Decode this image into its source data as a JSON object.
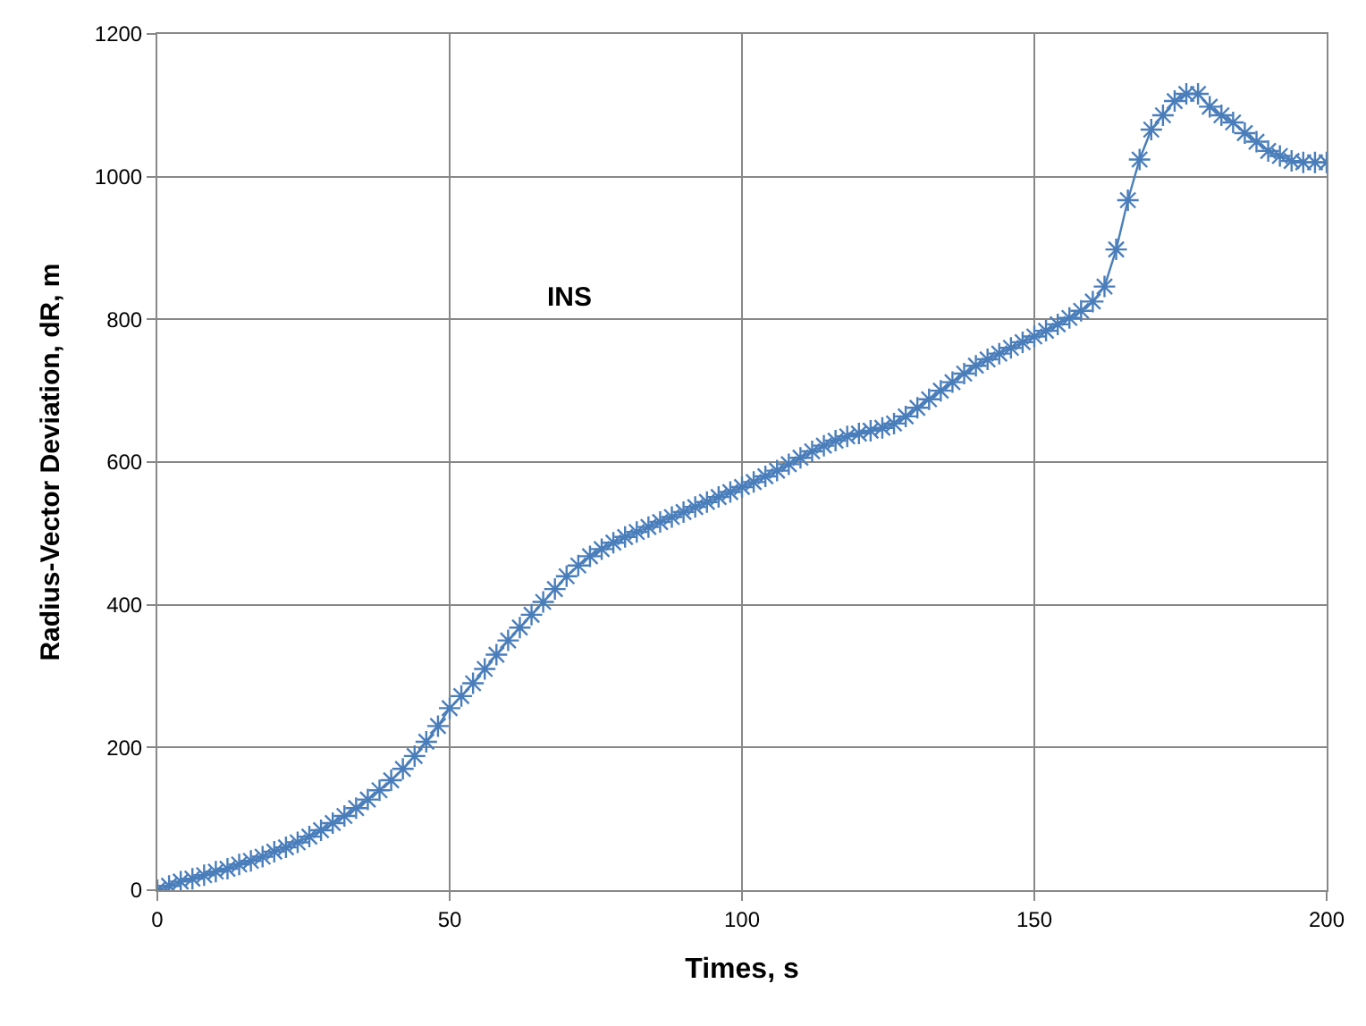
{
  "chart_data": {
    "type": "line",
    "xlabel": "Times, s",
    "ylabel": "Radius-Vector Deviation, dR, m",
    "annotations": [
      "INS"
    ],
    "x": [
      0,
      2,
      4,
      6,
      8,
      10,
      12,
      14,
      16,
      18,
      20,
      22,
      24,
      26,
      28,
      30,
      32,
      34,
      36,
      38,
      40,
      42,
      44,
      46,
      48,
      50,
      52,
      54,
      56,
      58,
      60,
      62,
      64,
      66,
      68,
      70,
      72,
      74,
      76,
      78,
      80,
      82,
      84,
      86,
      88,
      90,
      92,
      94,
      96,
      98,
      100,
      102,
      104,
      106,
      108,
      110,
      112,
      114,
      116,
      118,
      120,
      122,
      124,
      126,
      128,
      130,
      132,
      134,
      136,
      138,
      140,
      142,
      144,
      146,
      148,
      150,
      152,
      154,
      156,
      158,
      160,
      162,
      164,
      166,
      168,
      170,
      172,
      174,
      176,
      178,
      180,
      182,
      184,
      186,
      188,
      190,
      192,
      194,
      196,
      198,
      200
    ],
    "series": [
      {
        "color": "#4a7ebb",
        "values": [
          0,
          6,
          12,
          16,
          21,
          26,
          30,
          36,
          41,
          47,
          54,
          60,
          67,
          75,
          84,
          94,
          104,
          115,
          127,
          140,
          154,
          170,
          188,
          208,
          230,
          255,
          272,
          290,
          310,
          330,
          350,
          368,
          386,
          404,
          422,
          440,
          455,
          468,
          478,
          487,
          495,
          502,
          509,
          516,
          523,
          530,
          537,
          544,
          551,
          558,
          565,
          572,
          580,
          588,
          597,
          606,
          615,
          623,
          630,
          636,
          640,
          644,
          648,
          654,
          664,
          676,
          688,
          700,
          712,
          724,
          735,
          744,
          752,
          760,
          768,
          776,
          784,
          793,
          802,
          812,
          825,
          846,
          898,
          967,
          1024,
          1066,
          1086,
          1106,
          1116,
          1116,
          1098,
          1086,
          1076,
          1061,
          1049,
          1036,
          1029,
          1022,
          1020,
          1020,
          1020
        ]
      }
    ],
    "xlim": [
      0,
      200
    ],
    "xticks": [
      0,
      50,
      100,
      150,
      200
    ],
    "ylim": [
      0,
      1200
    ],
    "yticks": [
      0,
      200,
      400,
      600,
      800,
      1000,
      1200
    ],
    "grid": true,
    "marker": "cross",
    "line_style": "solid"
  }
}
